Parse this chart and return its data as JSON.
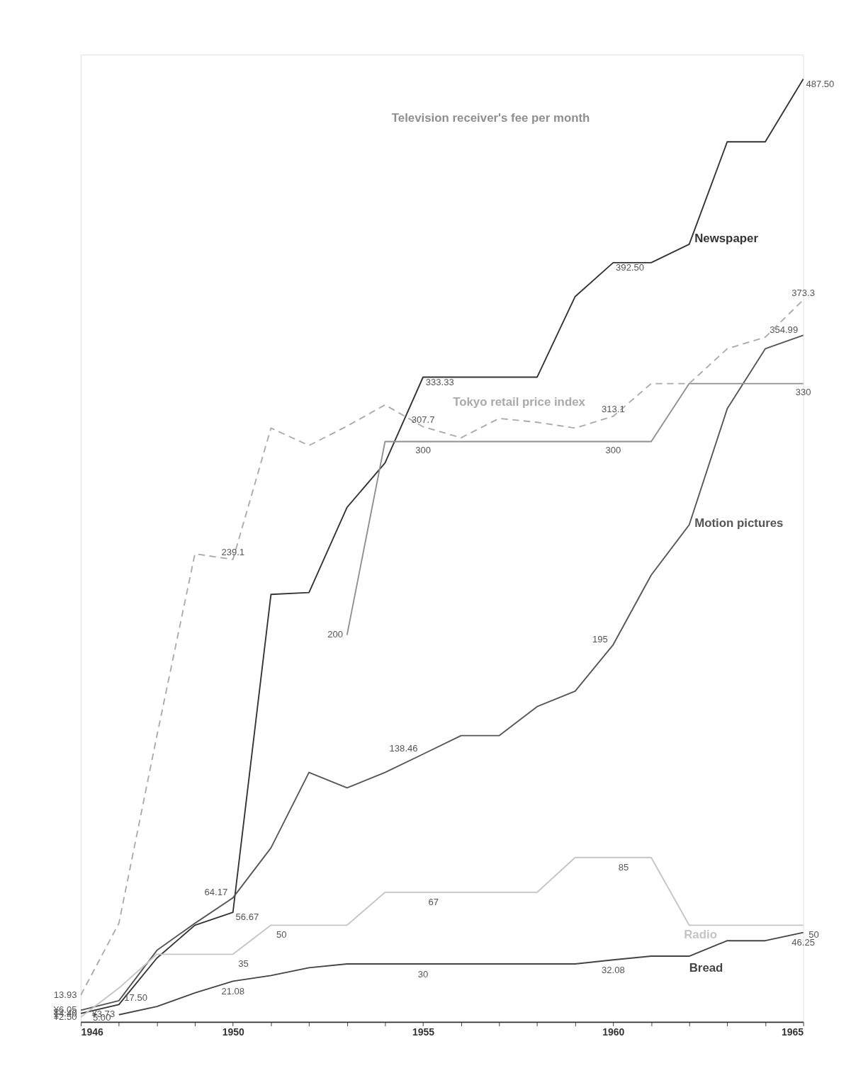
{
  "chart_data": {
    "type": "line",
    "x": [
      1946,
      1947,
      1948,
      1949,
      1950,
      1951,
      1952,
      1953,
      1954,
      1955,
      1956,
      1957,
      1958,
      1959,
      1960,
      1961,
      1962,
      1963,
      1964,
      1965
    ],
    "series": [
      {
        "name": "Newspaper",
        "color": "#333333",
        "values": [
          4.4,
          9,
          33,
          50,
          56.67,
          221,
          222,
          266,
          289,
          333.33,
          333.33,
          333.33,
          333.33,
          375,
          392.5,
          392.5,
          402,
          455,
          455,
          487.5
        ],
        "value_labels": [
          "¥4.40",
          null,
          null,
          null,
          "56.67",
          null,
          null,
          null,
          null,
          "333.33",
          null,
          null,
          null,
          null,
          "392.50",
          null,
          null,
          null,
          null,
          "487.50"
        ]
      },
      {
        "name": "Motion pictures",
        "color": "#555555",
        "values": [
          6.05,
          11,
          37,
          51,
          64.17,
          90,
          129,
          121,
          129,
          138.46,
          148,
          148,
          163,
          171,
          195,
          231,
          257,
          317,
          348,
          354.99
        ],
        "value_labels": [
          "¥6.05",
          null,
          null,
          null,
          "64.17",
          null,
          null,
          null,
          null,
          "138.46",
          null,
          null,
          null,
          null,
          "195",
          null,
          null,
          null,
          null,
          "354.99"
        ]
      },
      {
        "name": "Television receiver's fee per month",
        "color": "#8f8f8f",
        "x": [
          1953,
          1954,
          1955,
          1956,
          1957,
          1958,
          1959,
          1960,
          1961,
          1962,
          1963,
          1964,
          1965
        ],
        "values": [
          200,
          300,
          300,
          300,
          300,
          300,
          300,
          300,
          300,
          330,
          330,
          330,
          330
        ],
        "value_labels": [
          "200",
          null,
          "300",
          null,
          null,
          null,
          null,
          "300",
          null,
          null,
          null,
          null,
          "330"
        ]
      },
      {
        "name": "Tokyo retail price index",
        "color": "#aaaaaa",
        "line_style": "dashed",
        "values": [
          13.93,
          51,
          148,
          242,
          239.1,
          307,
          298,
          308,
          319,
          307.7,
          302,
          312,
          310,
          307,
          313.1,
          330,
          330,
          348,
          354,
          373.3
        ],
        "value_labels": [
          "13.93",
          null,
          null,
          null,
          "239.1",
          null,
          null,
          null,
          null,
          "307.7",
          null,
          null,
          null,
          null,
          "313.1",
          null,
          null,
          null,
          null,
          "373.3"
        ]
      },
      {
        "name": "Radio",
        "color": "#c4c4c4",
        "values": [
          2.5,
          17.5,
          35,
          35,
          35,
          50,
          50,
          50,
          67,
          67,
          67,
          67,
          67,
          85,
          85,
          85,
          50,
          50,
          50,
          50
        ],
        "value_labels": [
          "¥2.50",
          "17.50",
          null,
          null,
          "35",
          "50",
          null,
          null,
          null,
          "67",
          null,
          null,
          null,
          null,
          "85",
          null,
          null,
          null,
          null,
          "50"
        ]
      },
      {
        "name": "Bread",
        "color": "#444444",
        "x": [
          1947,
          1948,
          1949,
          1950,
          1951,
          1952,
          1953,
          1954,
          1955,
          1956,
          1957,
          1958,
          1959,
          1960,
          1961,
          1962,
          1963,
          1964,
          1965
        ],
        "values": [
          3.73,
          8,
          15,
          21.08,
          24,
          28,
          30,
          30,
          30,
          30,
          30,
          30,
          30,
          32.08,
          34,
          34,
          42,
          42,
          46.25
        ],
        "value_labels": [
          "¥3.73",
          null,
          null,
          "21.08",
          null,
          null,
          null,
          null,
          "30",
          null,
          null,
          null,
          null,
          "32.08",
          null,
          null,
          null,
          null,
          "46.25"
        ]
      }
    ],
    "annotations": [
      "5.00"
    ],
    "xlim": [
      1946,
      1965
    ],
    "xticks": [
      1946,
      {
        "value": 1947,
        "label": null
      },
      {
        "value": 1948,
        "label": null
      },
      {
        "value": 1949,
        "label": null
      },
      1950,
      {
        "value": 1951,
        "label": null
      },
      {
        "value": 1952,
        "label": null
      },
      {
        "value": 1953,
        "label": null
      },
      {
        "value": 1954,
        "label": null
      },
      1955,
      {
        "value": 1956,
        "label": null
      },
      {
        "value": 1957,
        "label": null
      },
      {
        "value": 1958,
        "label": null
      },
      {
        "value": 1959,
        "label": null
      },
      1960,
      {
        "value": 1961,
        "label": null
      },
      {
        "value": 1962,
        "label": null
      },
      {
        "value": 1963,
        "label": null
      },
      {
        "value": 1964,
        "label": null
      },
      1965
    ],
    "ylim": [
      0,
      500
    ],
    "tick_labels": "x",
    "grid": false,
    "legend": false,
    "marker": "none"
  }
}
